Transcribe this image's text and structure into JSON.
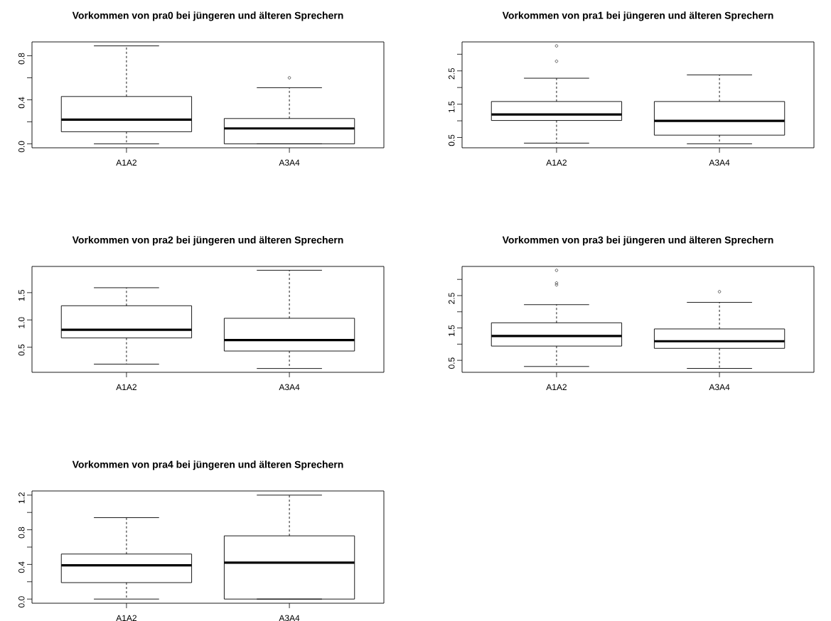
{
  "chart_data": [
    {
      "type": "box",
      "title": "Vorkommen von pra0 bei jüngeren und älteren Sprechern",
      "categories": [
        "A1A2",
        "A3A4"
      ],
      "marker": "circle",
      "boxes": [
        {
          "low": 0,
          "q1": 0.11,
          "median": 0.22,
          "q3": 0.43,
          "high": 0.89
        },
        {
          "low": 0,
          "q1": 0,
          "median": 0.14,
          "q3": 0.23,
          "high": 0.51,
          "outliers": [
            0.6
          ]
        }
      ],
      "ylim": [
        -0.036,
        0.926
      ],
      "yticks": [
        {
          "value": 0,
          "label": "0.0"
        },
        {
          "value": 0.2,
          "label": null
        },
        0.4,
        {
          "value": 0.6,
          "label": null
        },
        0.8
      ],
      "grid": false
    },
    {
      "type": "box",
      "title": "Vorkommen von pra1 bei jüngeren und älteren Sprechern",
      "categories": [
        "A1A2",
        "A3A4"
      ],
      "marker": "circle",
      "boxes": [
        {
          "low": 0.33,
          "q1": 1.01,
          "median": 1.19,
          "q3": 1.58,
          "high": 2.28,
          "outliers": [
            2.79,
            3.25
          ]
        },
        {
          "low": 0.31,
          "q1": 0.57,
          "median": 1.0,
          "q3": 1.58,
          "high": 2.38
        }
      ],
      "ylim": [
        0.19,
        3.37
      ],
      "yticks": [
        0.5,
        {
          "value": 1,
          "label": null
        },
        1.5,
        {
          "value": 2,
          "label": null
        },
        2.5,
        {
          "value": 3,
          "label": null
        }
      ],
      "grid": false
    },
    {
      "type": "box",
      "title": "Vorkommen von pra2 bei jüngeren und älteren Sprechern",
      "categories": [
        "A1A2",
        "A3A4"
      ],
      "boxes": [
        {
          "low": 0.19,
          "q1": 0.67,
          "median": 0.82,
          "q3": 1.26,
          "high": 1.59
        },
        {
          "low": 0.11,
          "q1": 0.43,
          "median": 0.63,
          "q3": 1.03,
          "high": 1.91
        }
      ],
      "ylim": [
        0.04,
        1.98
      ],
      "yticks": [
        0.5,
        {
          "value": 1,
          "label": "1.0"
        },
        1.5
      ],
      "grid": false
    },
    {
      "type": "box",
      "title": "Vorkommen von pra3 bei jüngeren und älteren Sprechern",
      "categories": [
        "A1A2",
        "A3A4"
      ],
      "marker": "circle",
      "boxes": [
        {
          "low": 0.31,
          "q1": 0.94,
          "median": 1.25,
          "q3": 1.66,
          "high": 2.22,
          "outliers": [
            2.83,
            2.89,
            3.28
          ]
        },
        {
          "low": 0.25,
          "q1": 0.87,
          "median": 1.09,
          "q3": 1.47,
          "high": 2.29,
          "outliers": [
            2.62
          ]
        }
      ],
      "ylim": [
        0.13,
        3.4
      ],
      "yticks": [
        0.5,
        {
          "value": 1,
          "label": null
        },
        1.5,
        {
          "value": 2,
          "label": null
        },
        2.5,
        {
          "value": 3,
          "label": null
        }
      ],
      "grid": false
    },
    {
      "type": "box",
      "title": "Vorkommen von pra4 bei jüngeren und älteren Sprechern",
      "categories": [
        "A1A2",
        "A3A4"
      ],
      "boxes": [
        {
          "low": 0,
          "q1": 0.19,
          "median": 0.39,
          "q3": 0.52,
          "high": 0.94
        },
        {
          "low": 0,
          "q1": 0,
          "median": 0.42,
          "q3": 0.73,
          "high": 1.2
        }
      ],
      "ylim": [
        -0.048,
        1.248
      ],
      "yticks": [
        {
          "value": 0,
          "label": "0.0"
        },
        {
          "value": 0.2,
          "label": null
        },
        0.4,
        {
          "value": 0.6,
          "label": null
        },
        0.8,
        {
          "value": 1,
          "label": null
        },
        1.2
      ],
      "grid": false
    }
  ]
}
